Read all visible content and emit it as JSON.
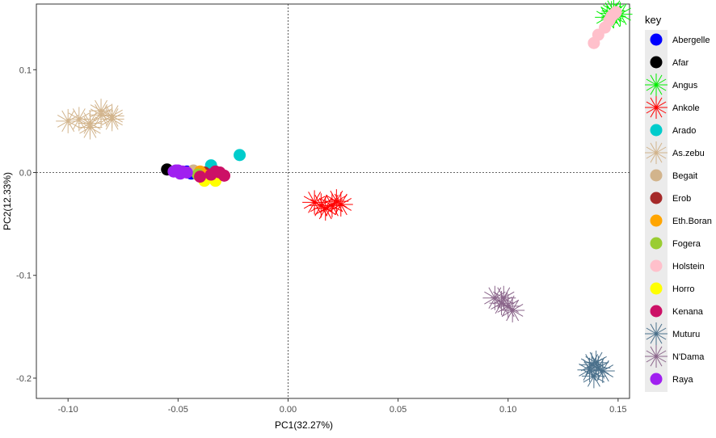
{
  "chart_data": {
    "type": "scatter",
    "title": "",
    "xlabel": "PC1(32.27%)",
    "ylabel": "PC2(12.33%)",
    "xlim": [
      -0.1144,
      0.1552
    ],
    "ylim": [
      -0.2197,
      0.1639
    ],
    "x_ticks": [
      -0.1,
      -0.05,
      0.0,
      0.05,
      0.1,
      0.15
    ],
    "x_tick_labels": [
      "-0.10",
      "-0.05",
      "0.00",
      "0.05",
      "0.10",
      "0.15"
    ],
    "y_ticks": [
      0.1,
      0.0,
      -0.1,
      -0.2
    ],
    "y_tick_labels": [
      "0.1",
      "0.0",
      "-0.1",
      "-0.2"
    ],
    "reference_lines": {
      "x": 0,
      "y": 0,
      "style": "dashed"
    },
    "grid": false,
    "legend": {
      "title": "key",
      "position": "right"
    },
    "series": [
      {
        "name": "Abergelle",
        "color": "#0000ff",
        "marker": "circle",
        "points": [
          [
            -0.046,
            0.001
          ],
          [
            -0.044,
            -0.001
          ]
        ]
      },
      {
        "name": "Afar",
        "color": "#000000",
        "marker": "circle",
        "points": [
          [
            -0.055,
            0.003
          ]
        ]
      },
      {
        "name": "Angus",
        "color": "#00ee00",
        "marker": "star",
        "points": [
          [
            0.148,
            0.157
          ],
          [
            0.145,
            0.151
          ],
          [
            0.148,
            0.152
          ],
          [
            0.147,
            0.155
          ],
          [
            0.151,
            0.154
          ]
        ]
      },
      {
        "name": "Ankole",
        "color": "#ff0000",
        "marker": "star",
        "points": [
          [
            0.015,
            -0.032
          ],
          [
            0.02,
            -0.032
          ],
          [
            0.024,
            -0.031
          ],
          [
            0.017,
            -0.035
          ],
          [
            0.012,
            -0.029
          ],
          [
            0.022,
            -0.028
          ]
        ]
      },
      {
        "name": "Arado",
        "color": "#00cccc",
        "marker": "circle",
        "points": [
          [
            -0.022,
            0.017
          ],
          [
            -0.035,
            0.007
          ]
        ]
      },
      {
        "name": "As.zebu",
        "color": "#d2b48c",
        "marker": "star",
        "points": [
          [
            -0.1,
            0.05
          ],
          [
            -0.09,
            0.048
          ],
          [
            -0.085,
            0.056
          ],
          [
            -0.08,
            0.052
          ],
          [
            -0.095,
            0.052
          ],
          [
            -0.09,
            0.044
          ],
          [
            -0.085,
            0.06
          ],
          [
            -0.08,
            0.055
          ]
        ]
      },
      {
        "name": "Begait",
        "color": "#d2b48c",
        "marker": "circle",
        "points": [
          [
            -0.043,
            0.002
          ],
          [
            -0.04,
            -0.001
          ]
        ]
      },
      {
        "name": "Erob",
        "color": "#a52a2a",
        "marker": "circle",
        "points": [
          [
            -0.038,
            0.0
          ],
          [
            -0.035,
            -0.002
          ]
        ]
      },
      {
        "name": "Eth.Boran",
        "color": "#ffa500",
        "marker": "circle",
        "points": [
          [
            -0.04,
            0.001
          ],
          [
            -0.037,
            -0.003
          ]
        ]
      },
      {
        "name": "Fogera",
        "color": "#9acd32",
        "marker": "circle",
        "points": [
          [
            -0.041,
            -0.002
          ]
        ]
      },
      {
        "name": "Holstein",
        "color": "#ffc0cb",
        "marker": "circle",
        "points": [
          [
            0.139,
            0.126
          ],
          [
            0.141,
            0.134
          ],
          [
            0.144,
            0.141
          ],
          [
            0.146,
            0.148
          ],
          [
            0.147,
            0.152
          ],
          [
            0.149,
            0.156
          ],
          [
            0.148,
            0.154
          ]
        ]
      },
      {
        "name": "Horro",
        "color": "#ffff00",
        "marker": "circle",
        "points": [
          [
            -0.038,
            -0.008
          ],
          [
            -0.033,
            -0.008
          ],
          [
            -0.036,
            -0.005
          ]
        ]
      },
      {
        "name": "Kenana",
        "color": "#cc1066",
        "marker": "circle",
        "points": [
          [
            -0.033,
            0.001
          ],
          [
            -0.029,
            -0.003
          ],
          [
            -0.031,
            0.0
          ],
          [
            -0.04,
            -0.004
          ],
          [
            -0.035,
            -0.002
          ]
        ]
      },
      {
        "name": "Muturu",
        "color": "#4a708b",
        "marker": "star",
        "points": [
          [
            0.138,
            -0.187
          ],
          [
            0.141,
            -0.19
          ],
          [
            0.139,
            -0.198
          ],
          [
            0.143,
            -0.193
          ],
          [
            0.137,
            -0.192
          ],
          [
            0.14,
            -0.185
          ]
        ]
      },
      {
        "name": "N'Dama",
        "color": "#8b668b",
        "marker": "star",
        "points": [
          [
            0.094,
            -0.122
          ],
          [
            0.1,
            -0.13
          ],
          [
            0.102,
            -0.134
          ],
          [
            0.097,
            -0.127
          ],
          [
            0.098,
            -0.122
          ]
        ]
      },
      {
        "name": "Raya",
        "color": "#a020f0",
        "marker": "circle",
        "points": [
          [
            -0.05,
            0.002
          ],
          [
            -0.052,
            0.001
          ],
          [
            -0.048,
            0.001
          ],
          [
            -0.046,
            0.0
          ],
          [
            -0.049,
            -0.001
          ],
          [
            -0.051,
            0.002
          ]
        ]
      }
    ]
  }
}
